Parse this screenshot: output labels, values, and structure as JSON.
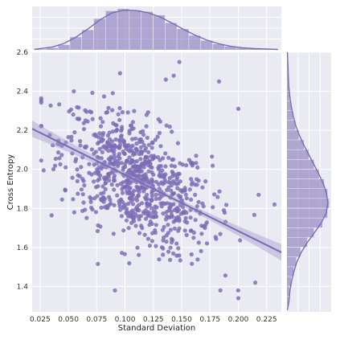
{
  "chart_data": {
    "type": "scatter",
    "subtype": "jointplot with marginal histograms, KDE curves and linear regression fit",
    "xlabel": "Standard Deviation",
    "ylabel": "Cross Entropy",
    "xlim": [
      0.018,
      0.238
    ],
    "ylim": [
      1.27,
      2.6
    ],
    "xticks": [
      "0.025",
      "0.050",
      "0.075",
      "0.100",
      "0.125",
      "0.150",
      "0.175",
      "0.200",
      "0.225"
    ],
    "yticks": [
      "1.4",
      "1.6",
      "1.8",
      "2.0",
      "2.2",
      "2.4",
      "2.6"
    ],
    "grid": true,
    "style": "seaborn darkgrid",
    "colors": {
      "point": "#7b6bb4",
      "background": "#eaeaf2",
      "grid": "#ffffff",
      "band": "#a79ccf",
      "axis_text": "#333333"
    },
    "regression": {
      "x": [
        0.018,
        0.238
      ],
      "y": [
        2.208,
        1.575
      ],
      "ci_halfwidth_ends": 0.042,
      "ci_halfwidth_center": 0.012
    },
    "points": {
      "count": 800,
      "x_mean": 0.11,
      "x_sd": 0.033,
      "slope": -2.88,
      "intercept": 2.26,
      "noise_sd": 0.155,
      "outliers": [
        [
          0.215,
          1.42
        ],
        [
          0.2,
          1.34
        ],
        [
          0.2,
          2.31
        ],
        [
          0.183,
          2.45
        ],
        [
          0.148,
          2.55
        ],
        [
          0.143,
          2.48
        ],
        [
          0.136,
          2.46
        ],
        [
          0.218,
          1.87
        ],
        [
          0.232,
          1.82
        ]
      ]
    },
    "marginal_x": {
      "bin_edges": [
        0.02,
        0.0305,
        0.041,
        0.0515,
        0.062,
        0.0725,
        0.083,
        0.0935,
        0.104,
        0.1145,
        0.125,
        0.1355,
        0.146,
        0.1565,
        0.167,
        0.1775,
        0.188,
        0.1985,
        0.209,
        0.2195,
        0.23
      ],
      "density": [
        0.2,
        0.5,
        1.4,
        3.6,
        5.6,
        8.8,
        11.0,
        11.6,
        11.2,
        10.8,
        9.8,
        7.6,
        5.9,
        4.0,
        2.6,
        1.6,
        0.9,
        0.5,
        0.3,
        0.2
      ],
      "kde_peak_x": 0.11
    },
    "marginal_y": {
      "bin_edges": [
        1.3,
        1.35,
        1.4,
        1.45,
        1.5,
        1.55,
        1.6,
        1.65,
        1.7,
        1.75,
        1.8,
        1.85,
        1.9,
        1.95,
        2.0,
        2.05,
        2.1,
        2.15,
        2.2,
        2.25,
        2.3,
        2.35,
        2.4,
        2.45,
        2.5,
        2.55
      ],
      "density": [
        0.1,
        0.15,
        0.25,
        0.4,
        0.55,
        0.8,
        1.2,
        1.6,
        2.1,
        2.4,
        2.5,
        2.4,
        2.2,
        1.9,
        1.6,
        1.3,
        1.0,
        0.7,
        0.5,
        0.35,
        0.25,
        0.15,
        0.1,
        0.08,
        0.05
      ],
      "kde_peak_y": 1.86
    }
  }
}
